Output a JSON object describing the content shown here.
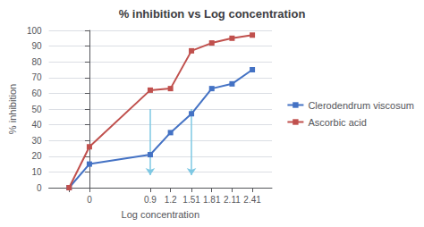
{
  "chart_data": {
    "type": "line",
    "title": "% inhibition vs Log concentration",
    "xlabel": "Log concentration",
    "ylabel": "% inhibition",
    "x": [
      -0.3,
      0,
      0.9,
      1.2,
      1.51,
      1.81,
      2.11,
      2.41
    ],
    "series": [
      {
        "name": "Clerodendrum viscosum",
        "color": "#4472C4",
        "marker": "square",
        "values": [
          0,
          15,
          21,
          35,
          47,
          63,
          66,
          75
        ]
      },
      {
        "name": "Ascorbic acid",
        "color": "#C0504D",
        "marker": "square",
        "values": [
          0,
          26,
          62,
          63,
          87,
          92,
          95,
          97
        ]
      }
    ],
    "xlim": [
      -0.6,
      2.7
    ],
    "xticks": [
      {
        "value": -0.3,
        "label": null
      },
      0,
      0.9,
      1.2,
      1.51,
      1.81,
      2.11,
      2.41
    ],
    "ylim": [
      0,
      100
    ],
    "yticks": [
      0,
      10,
      20,
      30,
      40,
      50,
      60,
      70,
      80,
      90,
      100
    ],
    "grid": true,
    "legend": "right",
    "annotations": [
      {
        "type": "arrow",
        "x": 0.9,
        "y_start": 50,
        "y_end": 8,
        "color": "#7EC8E3"
      },
      {
        "type": "arrow",
        "x": 1.51,
        "y_start": 50,
        "y_end": 8,
        "color": "#7EC8E3"
      }
    ]
  }
}
